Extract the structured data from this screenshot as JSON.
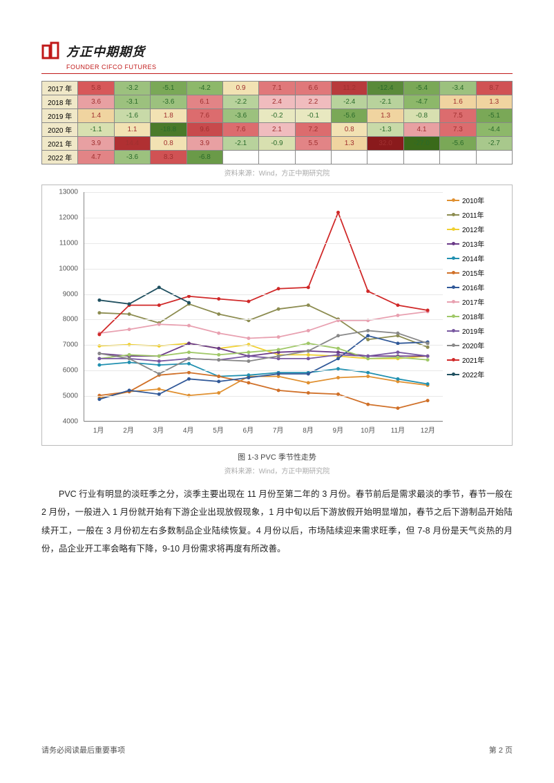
{
  "logo": {
    "cn": "方正中期期货",
    "en": "FOUNDER CIFCO FUTURES"
  },
  "table": {
    "years": [
      "2017 年",
      "2018 年",
      "2019 年",
      "2020 年",
      "2021 年",
      "2022 年"
    ],
    "rows": [
      [
        {
          "v": "5.8",
          "c": "#d7585a"
        },
        {
          "v": "-3.2",
          "c": "#9cc17e"
        },
        {
          "v": "-5.1",
          "c": "#7aa857"
        },
        {
          "v": "-4.2",
          "c": "#8db86a"
        },
        {
          "v": "0.9",
          "c": "#f2e2b3"
        },
        {
          "v": "7.1",
          "c": "#e0787a"
        },
        {
          "v": "6.6",
          "c": "#e0787a"
        },
        {
          "v": "11.2",
          "c": "#b83a3c"
        },
        {
          "v": "-12.4",
          "c": "#5a8a3a"
        },
        {
          "v": "-5.4",
          "c": "#7aa857"
        },
        {
          "v": "-3.4",
          "c": "#9cc17e"
        },
        {
          "v": "8.7",
          "c": "#d05254"
        }
      ],
      [
        {
          "v": "3.6",
          "c": "#e8a0a2"
        },
        {
          "v": "-3.1",
          "c": "#9cc17e"
        },
        {
          "v": "-3.6",
          "c": "#9cc17e"
        },
        {
          "v": "6.1",
          "c": "#e28486"
        },
        {
          "v": "-2.2",
          "c": "#b8d29c"
        },
        {
          "v": "2.4",
          "c": "#f0bcbe"
        },
        {
          "v": "2.2",
          "c": "#f0bcbe"
        },
        {
          "v": "-2.4",
          "c": "#b8d29c"
        },
        {
          "v": "-2.1",
          "c": "#b8d29c"
        },
        {
          "v": "-4.7",
          "c": "#8db86a"
        },
        {
          "v": "1.6",
          "c": "#f0d4a0"
        },
        {
          "v": "1.3",
          "c": "#f0d4a0"
        }
      ],
      [
        {
          "v": "1.4",
          "c": "#f0d4a0"
        },
        {
          "v": "-1.6",
          "c": "#c8daa8"
        },
        {
          "v": "1.8",
          "c": "#f2e2b3"
        },
        {
          "v": "7.6",
          "c": "#dc6c6e"
        },
        {
          "v": "-3.6",
          "c": "#9cc17e"
        },
        {
          "v": "-0.2",
          "c": "#e8e8c0"
        },
        {
          "v": "-0.1",
          "c": "#e8e8c0"
        },
        {
          "v": "-5.6",
          "c": "#7aa857"
        },
        {
          "v": "1.3",
          "c": "#f0d4a0"
        },
        {
          "v": "-0.8",
          "c": "#d8e0b0"
        },
        {
          "v": "7.5",
          "c": "#dc6c6e"
        },
        {
          "v": "-5.1",
          "c": "#7aa857"
        }
      ],
      [
        {
          "v": "-1.1",
          "c": "#d8e0b0"
        },
        {
          "v": "1.1",
          "c": "#f2e2b3"
        },
        {
          "v": "-18.8",
          "c": "#4a7a2a"
        },
        {
          "v": "9.6",
          "c": "#c84a4c"
        },
        {
          "v": "7.6",
          "c": "#dc6c6e"
        },
        {
          "v": "2.1",
          "c": "#f0bcbe"
        },
        {
          "v": "7.2",
          "c": "#dc6c6e"
        },
        {
          "v": "0.8",
          "c": "#f2e2b3"
        },
        {
          "v": "-1.3",
          "c": "#c8daa8"
        },
        {
          "v": "4.1",
          "c": "#e8a0a2"
        },
        {
          "v": "7.3",
          "c": "#dc6c6e"
        },
        {
          "v": "-4.4",
          "c": "#8db86a"
        }
      ],
      [
        {
          "v": "3.9",
          "c": "#e8a0a2"
        },
        {
          "v": "14.4",
          "c": "#b03032"
        },
        {
          "v": "0.8",
          "c": "#f2e2b3"
        },
        {
          "v": "3.9",
          "c": "#e8a0a2"
        },
        {
          "v": "-2.1",
          "c": "#b8d29c"
        },
        {
          "v": "-0.9",
          "c": "#d8e0b0"
        },
        {
          "v": "5.5",
          "c": "#e28486"
        },
        {
          "v": "1.3",
          "c": "#f0d4a0"
        },
        {
          "v": "32.0",
          "c": "#8a1a1c"
        },
        {
          "v": "-27.0",
          "c": "#3a6a1a"
        },
        {
          "v": "-5.6",
          "c": "#7aa857"
        },
        {
          "v": "-2.7",
          "c": "#a8c88c"
        }
      ],
      [
        {
          "v": "4.7",
          "c": "#e28486"
        },
        {
          "v": "-3.6",
          "c": "#9cc17e"
        },
        {
          "v": "8.3",
          "c": "#d05254"
        },
        {
          "v": "-6.8",
          "c": "#6a9a48"
        },
        {
          "v": "",
          "c": "#fff"
        },
        {
          "v": "",
          "c": "#fff"
        },
        {
          "v": "",
          "c": "#fff"
        },
        {
          "v": "",
          "c": "#fff"
        },
        {
          "v": "",
          "c": "#fff"
        },
        {
          "v": "",
          "c": "#fff"
        },
        {
          "v": "",
          "c": "#fff"
        },
        {
          "v": "",
          "c": "#fff"
        }
      ]
    ],
    "source": "资料来源：Wind，方正中期研究院"
  },
  "chart": {
    "ylim": [
      4000,
      13000
    ],
    "ytick_step": 1000,
    "yticks": [
      4000,
      5000,
      6000,
      7000,
      8000,
      9000,
      10000,
      11000,
      12000,
      13000
    ],
    "xlabels": [
      "1月",
      "2月",
      "3月",
      "4月",
      "5月",
      "6月",
      "7月",
      "8月",
      "9月",
      "10月",
      "11月",
      "12月"
    ],
    "series": [
      {
        "name": "2010年",
        "color": "#e09030",
        "mark": "diamond",
        "data": [
          4900,
          5150,
          5250,
          5000,
          5100,
          5750,
          5750,
          5500,
          5700,
          5750,
          5550,
          5400
        ]
      },
      {
        "name": "2011年",
        "color": "#8c8c50",
        "mark": "square",
        "data": [
          8250,
          8200,
          7850,
          8600,
          8200,
          7950,
          8400,
          8550,
          8000,
          7200,
          7350,
          6900
        ]
      },
      {
        "name": "2012年",
        "color": "#f0d030",
        "mark": "triangle",
        "data": [
          6950,
          7000,
          6950,
          7050,
          6850,
          7000,
          6600,
          6600,
          6550,
          6450,
          6450,
          6550
        ]
      },
      {
        "name": "2013年",
        "color": "#6a3a88",
        "mark": "x",
        "data": [
          6650,
          6550,
          6550,
          7050,
          6850,
          6550,
          6700,
          6750,
          6700,
          6550,
          6550,
          6550
        ]
      },
      {
        "name": "2014年",
        "color": "#2090b0",
        "mark": "star",
        "data": [
          6200,
          6300,
          6200,
          6250,
          5750,
          5800,
          5900,
          5900,
          6050,
          5900,
          5650,
          5450
        ]
      },
      {
        "name": "2015年",
        "color": "#d07028",
        "mark": "circle",
        "data": [
          5000,
          5150,
          5800,
          5900,
          5750,
          5500,
          5200,
          5100,
          5050,
          4650,
          4500,
          4800
        ]
      },
      {
        "name": "2016年",
        "color": "#305898",
        "mark": "plus",
        "data": [
          4850,
          5200,
          5050,
          5650,
          5550,
          5700,
          5850,
          5850,
          6450,
          7350,
          7050,
          7100
        ]
      },
      {
        "name": "2017年",
        "color": "#e8a0b0",
        "mark": "dash",
        "data": [
          7450,
          7600,
          7800,
          7750,
          7450,
          7250,
          7300,
          7550,
          7950,
          7950,
          8150,
          8300
        ]
      },
      {
        "name": "2018年",
        "color": "#a0c868",
        "mark": "dash",
        "data": [
          6450,
          6600,
          6550,
          6700,
          6600,
          6700,
          6800,
          7050,
          6850,
          6450,
          6500,
          6400
        ]
      },
      {
        "name": "2019年",
        "color": "#7858a0",
        "mark": "diamond",
        "data": [
          6450,
          6450,
          6350,
          6450,
          6400,
          6550,
          6450,
          6450,
          6600,
          6550,
          6700,
          6550
        ]
      },
      {
        "name": "2020年",
        "color": "#888888",
        "mark": "square",
        "data": [
          6650,
          6450,
          5850,
          6450,
          6400,
          6350,
          6550,
          6750,
          7350,
          7550,
          7450,
          7050
        ]
      },
      {
        "name": "2021年",
        "color": "#d02828",
        "mark": "triangle",
        "data": [
          7400,
          8550,
          8550,
          8900,
          8800,
          8700,
          9200,
          9250,
          12200,
          9100,
          8550,
          8350
        ]
      },
      {
        "name": "2022年",
        "color": "#205060",
        "mark": "circle",
        "data": [
          8750,
          8600,
          9250,
          8650,
          null,
          null,
          null,
          null,
          null,
          null,
          null,
          null
        ]
      }
    ],
    "caption": "图 1-3 PVC 季节性走势",
    "source": "资料来源：Wind，方正中期研究院"
  },
  "paragraph": "PVC 行业有明显的淡旺季之分，淡季主要出现在 11 月份至第二年的 3 月份。春节前后是需求最淡的季节，春节一般在 2 月份，一般进入 1 月份就开始有下游企业出现放假现象，1 月中旬以后下游放假开始明显增加，春节之后下游制品开始陆续开工，一般在 3 月份初左右多数制品企业陆续恢复。4 月份以后，市场陆续迎来需求旺季，但 7-8 月份是天气炎热的月份，品企业开工率会略有下降，9-10 月份需求将再度有所改善。",
  "footer": {
    "left": "请务必阅读最后重要事项",
    "right": "第 2 页"
  }
}
